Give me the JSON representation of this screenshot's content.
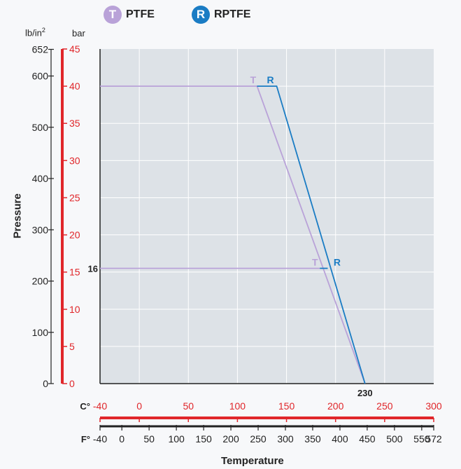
{
  "legend": [
    {
      "badge": "T",
      "label": "PTFE",
      "color": "#b9a2d8"
    },
    {
      "badge": "R",
      "label": "RPTFE",
      "color": "#1a7cc4"
    }
  ],
  "units": {
    "psi": "lb/in",
    "psi_exp": "2",
    "bar": "bar"
  },
  "axis_titles": {
    "y": "Pressure",
    "x": "Temperature"
  },
  "colors": {
    "ptfe": "#b9a2d8",
    "rptfe": "#1a7cc4",
    "bar_axis": "#e0262a",
    "plot_bg": "#dde2e7",
    "grid": "#ffffff"
  },
  "chart_data": {
    "type": "line",
    "xlabel": "Temperature",
    "ylabel": "Pressure",
    "xlim": [
      -40,
      300
    ],
    "ylim": [
      0,
      45
    ],
    "x_unit": "C°",
    "y_unit": "bar",
    "grid": true,
    "celsius_ticks": [
      "-40",
      "0",
      "50",
      "100",
      "150",
      "200",
      "250",
      "300"
    ],
    "fahrenheit_ticks": [
      "-40",
      "0",
      "50",
      "100",
      "150",
      "200",
      "250",
      "300",
      "350",
      "400",
      "450",
      "500",
      "550",
      "572"
    ],
    "fahrenheit_unit": "F°",
    "bar_ticks": [
      "0",
      "5",
      "10",
      "15",
      "20",
      "25",
      "30",
      "35",
      "40",
      "45"
    ],
    "psi_ticks": [
      {
        "label": "0",
        "bar": 0
      },
      {
        "label": "100",
        "bar": 6.895
      },
      {
        "label": "200",
        "bar": 13.79
      },
      {
        "label": "300",
        "bar": 20.684
      },
      {
        "label": "400",
        "bar": 27.579
      },
      {
        "label": "500",
        "bar": 34.474
      },
      {
        "label": "600",
        "bar": 41.369
      },
      {
        "label": "652",
        "bar": 44.954
      }
    ],
    "series": [
      {
        "name": "PTFE",
        "marker": "T",
        "color": "#b9a2d8",
        "points": [
          [
            -40,
            40
          ],
          [
            120,
            40
          ],
          [
            230,
            0
          ]
        ],
        "secondary": [
          [
            -40,
            15.5
          ],
          [
            184,
            15.5
          ]
        ]
      },
      {
        "name": "RPTFE",
        "marker": "R",
        "color": "#1a7cc4",
        "points": [
          [
            120,
            40
          ],
          [
            140,
            40
          ],
          [
            230,
            0
          ]
        ],
        "secondary": [
          [
            184,
            15.5
          ],
          [
            192,
            15.5
          ]
        ]
      }
    ],
    "annotations": [
      {
        "text": "16",
        "x": -40,
        "y": 15.5
      },
      {
        "text": "230",
        "x": 230,
        "y": 0
      },
      {
        "text": "T",
        "x": 113,
        "y": 40,
        "series": "PTFE"
      },
      {
        "text": "R",
        "x": 130,
        "y": 40,
        "series": "RPTFE"
      },
      {
        "text": "T",
        "x": 176,
        "y": 15.5,
        "series": "PTFE"
      },
      {
        "text": "R",
        "x": 198,
        "y": 15.5,
        "series": "RPTFE"
      }
    ]
  }
}
